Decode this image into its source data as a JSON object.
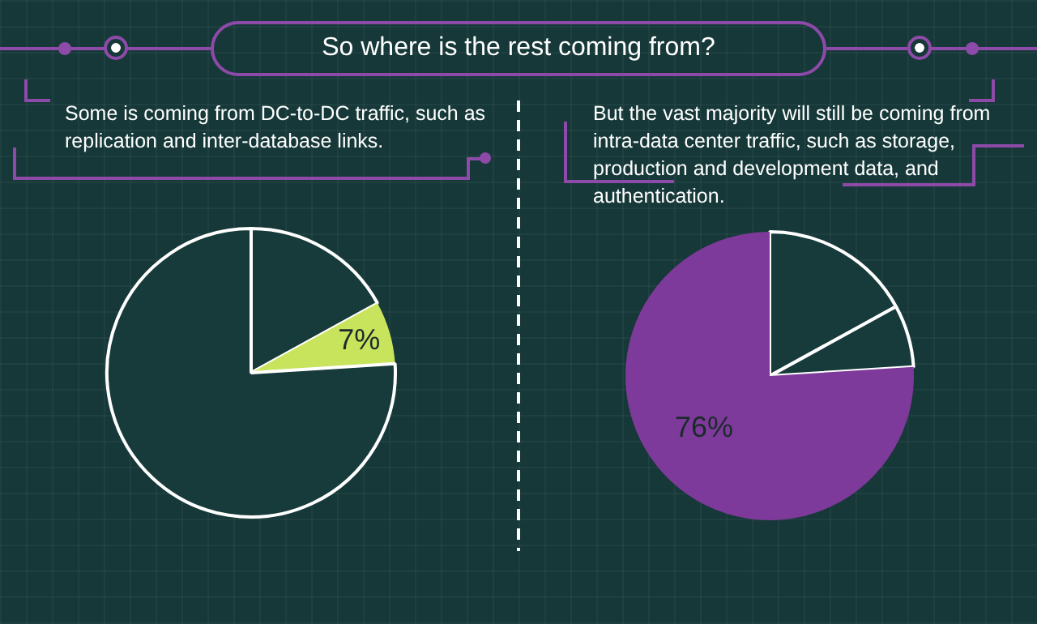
{
  "chart_data": [
    {
      "type": "pie",
      "title": "So where is the rest coming from?",
      "annotations": [
        "Some is coming from DC-to-DC traffic, such as replication and inter-database links."
      ],
      "categories": [
        null,
        null,
        null
      ],
      "values": [
        17,
        7,
        76
      ],
      "colors": [
        "#173a3a",
        "#c8e35c",
        "#173a3a"
      ],
      "value_labels": [
        null,
        "7%",
        null
      ]
    },
    {
      "type": "pie",
      "annotations": [
        "But the vast majority will still be coming from intra-data center traffic, such as storage, production and development data, and authentication."
      ],
      "categories": [
        null,
        null,
        null
      ],
      "values": [
        17,
        7,
        76
      ],
      "colors": [
        "#173a3a",
        "#173a3a",
        "#7e3a9a"
      ],
      "value_labels": [
        null,
        null,
        "76%"
      ]
    }
  ]
}
